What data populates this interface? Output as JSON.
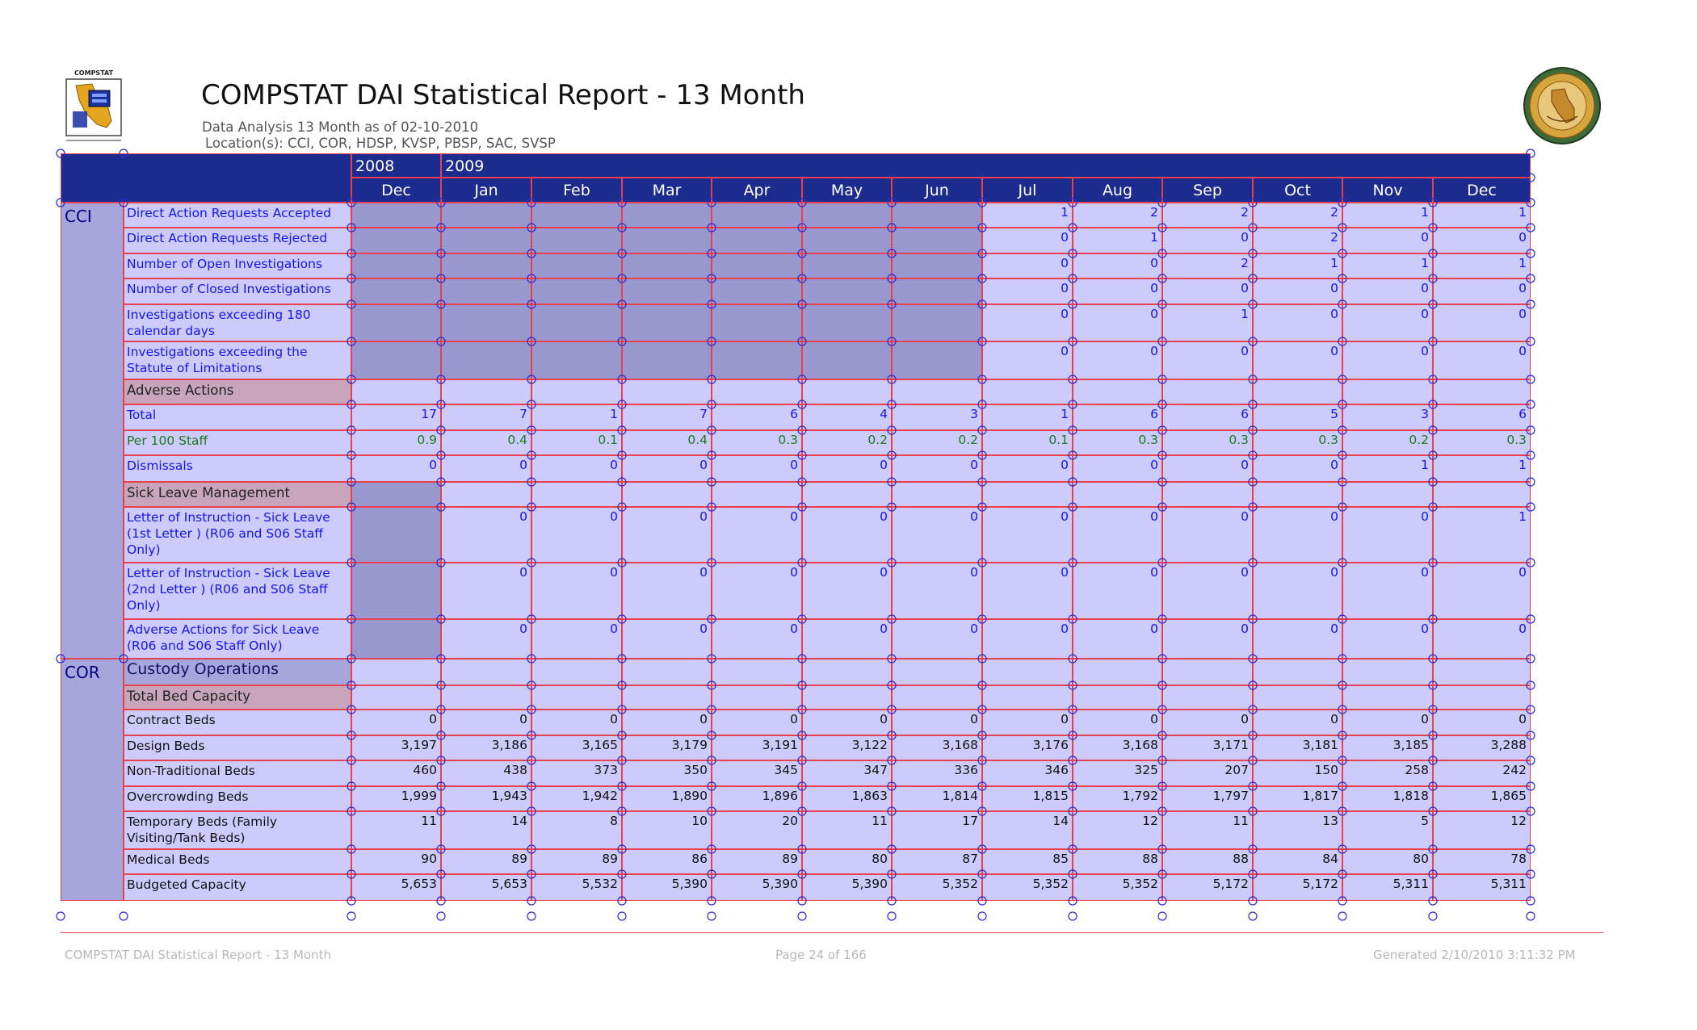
{
  "header": {
    "title": "COMPSTAT DAI Statistical Report - 13 Month",
    "subtitle": "Data Analysis 13 Month as of 02-10-2010",
    "locations": "Location(s):   CCI,  COR,  HDSP,  KVSP,  PBSP,  SAC,  SVSP",
    "logo_text": "COMPSTAT"
  },
  "table": {
    "years": [
      {
        "label": "2008",
        "span": 1
      },
      {
        "label": "2009",
        "span": 12
      }
    ],
    "months": [
      "Dec",
      "Jan",
      "Feb",
      "Mar",
      "Apr",
      "May",
      "Jun",
      "Jul",
      "Aug",
      "Sep",
      "Oct",
      "Nov",
      "Dec"
    ],
    "groups": [
      {
        "location": "CCI",
        "rows": [
          {
            "label": "Direct Action Requests Accepted",
            "style": "blue",
            "dark_before": 7,
            "values": [
              "",
              "",
              "",
              "",
              "",
              "",
              "",
              "1",
              "2",
              "2",
              "2",
              "1",
              "1"
            ]
          },
          {
            "label": "Direct Action Requests Rejected",
            "style": "blue",
            "dark_before": 7,
            "values": [
              "",
              "",
              "",
              "",
              "",
              "",
              "",
              "0",
              "1",
              "0",
              "2",
              "0",
              "0"
            ]
          },
          {
            "label": "Number of Open Investigations",
            "style": "blue",
            "dark_before": 7,
            "values": [
              "",
              "",
              "",
              "",
              "",
              "",
              "",
              "0",
              "0",
              "2",
              "1",
              "1",
              "1"
            ]
          },
          {
            "label": "Number of Closed Investigations",
            "style": "blue",
            "dark_before": 7,
            "values": [
              "",
              "",
              "",
              "",
              "",
              "",
              "",
              "0",
              "0",
              "0",
              "0",
              "0",
              "0"
            ]
          },
          {
            "label": "Investigations exceeding 180 calendar days",
            "style": "blue",
            "dark_before": 7,
            "values": [
              "",
              "",
              "",
              "",
              "",
              "",
              "",
              "0",
              "0",
              "1",
              "0",
              "0",
              "0"
            ]
          },
          {
            "label": "Investigations exceeding the Statute of Limitations",
            "style": "blue",
            "dark_before": 7,
            "values": [
              "",
              "",
              "",
              "",
              "",
              "",
              "",
              "0",
              "0",
              "0",
              "0",
              "0",
              "0"
            ]
          },
          {
            "label": "Adverse Actions",
            "style": "section",
            "dark_before": 0,
            "values": [
              "",
              "",
              "",
              "",
              "",
              "",
              "",
              "",
              "",
              "",
              "",
              "",
              ""
            ]
          },
          {
            "label": "Total",
            "style": "blue",
            "dark_before": 0,
            "values": [
              "17",
              "7",
              "1",
              "7",
              "6",
              "4",
              "3",
              "1",
              "6",
              "6",
              "5",
              "3",
              "6"
            ]
          },
          {
            "label": "Per 100 Staff",
            "style": "green",
            "dark_before": 0,
            "values": [
              "0.9",
              "0.4",
              "0.1",
              "0.4",
              "0.3",
              "0.2",
              "0.2",
              "0.1",
              "0.3",
              "0.3",
              "0.3",
              "0.2",
              "0.3"
            ]
          },
          {
            "label": "Dismissals",
            "style": "blue",
            "dark_before": 0,
            "values": [
              "0",
              "0",
              "0",
              "0",
              "0",
              "0",
              "0",
              "0",
              "0",
              "0",
              "0",
              "1",
              "1"
            ]
          },
          {
            "label": "Sick Leave Management",
            "style": "section",
            "dark_before": 1,
            "values": [
              "",
              "",
              "",
              "",
              "",
              "",
              "",
              "",
              "",
              "",
              "",
              "",
              ""
            ]
          },
          {
            "label": "Letter of Instruction - Sick Leave (1st Letter ) (R06 and S06 Staff Only)",
            "style": "blue",
            "dark_before": 1,
            "values": [
              "",
              "0",
              "0",
              "0",
              "0",
              "0",
              "0",
              "0",
              "0",
              "0",
              "0",
              "0",
              "1"
            ]
          },
          {
            "label": "Letter of Instruction - Sick Leave (2nd Letter ) (R06 and S06 Staff Only)",
            "style": "blue",
            "dark_before": 1,
            "values": [
              "",
              "0",
              "0",
              "0",
              "0",
              "0",
              "0",
              "0",
              "0",
              "0",
              "0",
              "0",
              "0"
            ]
          },
          {
            "label": "Adverse Actions for Sick Leave (R06 and S06 Staff Only)",
            "style": "blue",
            "dark_before": 1,
            "values": [
              "",
              "0",
              "0",
              "0",
              "0",
              "0",
              "0",
              "0",
              "0",
              "0",
              "0",
              "0",
              "0"
            ]
          }
        ]
      },
      {
        "location": "COR",
        "rows": [
          {
            "label": "Custody Operations",
            "style": "header",
            "dark_before": 0,
            "values": [
              "",
              "",
              "",
              "",
              "",
              "",
              "",
              "",
              "",
              "",
              "",
              "",
              ""
            ]
          },
          {
            "label": "Total Bed Capacity",
            "style": "section",
            "dark_before": 0,
            "values": [
              "",
              "",
              "",
              "",
              "",
              "",
              "",
              "",
              "",
              "",
              "",
              "",
              ""
            ]
          },
          {
            "label": "Contract Beds",
            "style": "black",
            "dark_before": 0,
            "values": [
              "0",
              "0",
              "0",
              "0",
              "0",
              "0",
              "0",
              "0",
              "0",
              "0",
              "0",
              "0",
              "0"
            ]
          },
          {
            "label": "Design Beds",
            "style": "black",
            "dark_before": 0,
            "values": [
              "3,197",
              "3,186",
              "3,165",
              "3,179",
              "3,191",
              "3,122",
              "3,168",
              "3,176",
              "3,168",
              "3,171",
              "3,181",
              "3,185",
              "3,288"
            ]
          },
          {
            "label": "Non-Traditional Beds",
            "style": "black",
            "dark_before": 0,
            "values": [
              "460",
              "438",
              "373",
              "350",
              "345",
              "347",
              "336",
              "346",
              "325",
              "207",
              "150",
              "258",
              "242"
            ]
          },
          {
            "label": "Overcrowding Beds",
            "style": "black",
            "dark_before": 0,
            "values": [
              "1,999",
              "1,943",
              "1,942",
              "1,890",
              "1,896",
              "1,863",
              "1,814",
              "1,815",
              "1,792",
              "1,797",
              "1,817",
              "1,818",
              "1,865"
            ]
          },
          {
            "label": "Temporary Beds (Family Visiting/Tank Beds)",
            "style": "black",
            "dark_before": 0,
            "values": [
              "11",
              "14",
              "8",
              "10",
              "20",
              "11",
              "17",
              "14",
              "12",
              "11",
              "13",
              "5",
              "12"
            ]
          },
          {
            "label": "Medical Beds",
            "style": "black",
            "dark_before": 0,
            "values": [
              "90",
              "89",
              "89",
              "86",
              "89",
              "80",
              "87",
              "85",
              "88",
              "88",
              "84",
              "80",
              "78"
            ]
          },
          {
            "label": "Budgeted Capacity",
            "style": "black",
            "dark_before": 0,
            "values": [
              "5,653",
              "5,653",
              "5,532",
              "5,390",
              "5,390",
              "5,390",
              "5,352",
              "5,352",
              "5,352",
              "5,172",
              "5,172",
              "5,311",
              "5,311"
            ]
          }
        ]
      }
    ]
  },
  "footer": {
    "left": "COMPSTAT DAI Statistical Report - 13 Month",
    "center": "Page 24 of 166",
    "right": "Generated 2/10/2010 3:11:32 PM"
  },
  "colors": {
    "header_bg": "#1c2b8e",
    "cell_bg": "#cccbfb",
    "dark_cell_bg": "#9897ce",
    "section_bg": "#c8a5ba",
    "grid_line": "#e8404c",
    "label_text": "#1515f0",
    "green_text": "#1c7a1c"
  }
}
